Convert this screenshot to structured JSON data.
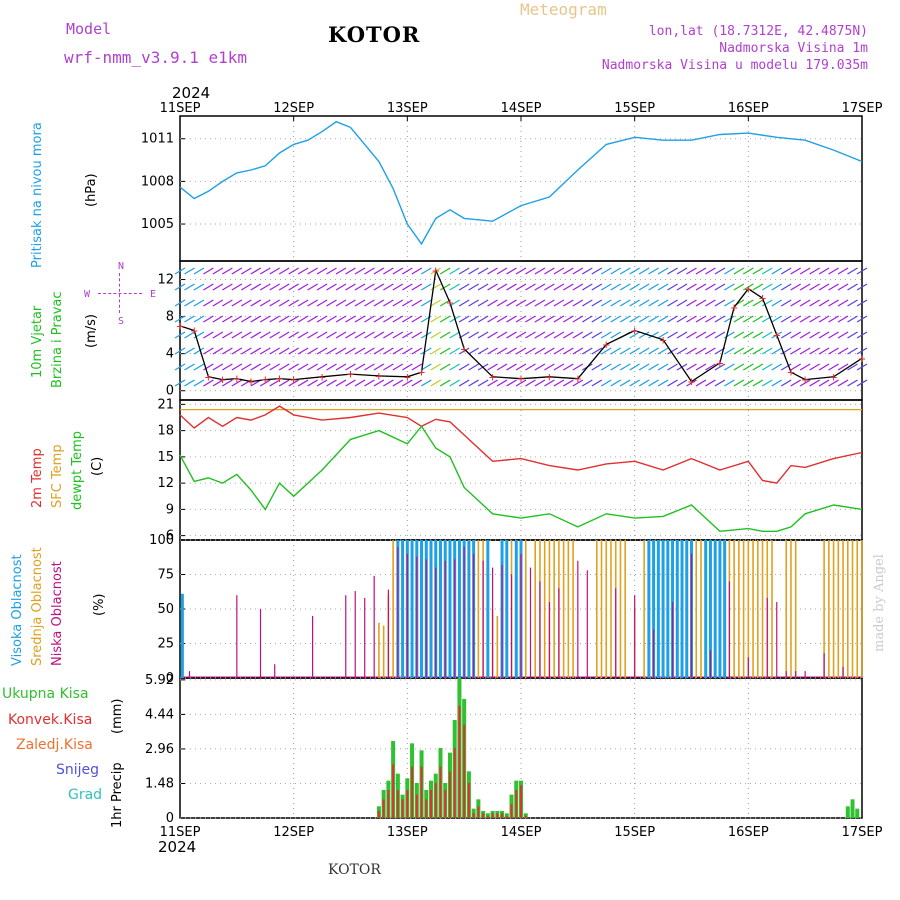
{
  "header": {
    "model_label": "Model",
    "model_name": "wrf-nmm_v3.9.1 e1km",
    "station": "KOTOR",
    "meteogram": "Meteogram",
    "lonlat": "lon,lat (18.7312E, 42.4875N)",
    "altitude": "Nadmorska Visina 1m",
    "model_altitude": "Nadmorska Visina u modelu 179.035m",
    "footer_station": "KOTOR",
    "watermark": "made by Angel"
  },
  "colors": {
    "pressure": "#1ea0e6",
    "temp2m": "#e03030",
    "sfc_temp": "#e0a020",
    "dewpt": "#20c020",
    "high_cloud": "#1ea0e6",
    "mid_cloud": "#e0a020",
    "low_cloud": "#c01080",
    "total_precip": "#30c030",
    "conv_precip": "#e03030",
    "violet": "#b040d0"
  },
  "time_axis": {
    "top_year": "2024",
    "bottom_year": "2024",
    "days": [
      "11SEP",
      "12SEP",
      "13SEP",
      "14SEP",
      "15SEP",
      "16SEP",
      "17SEP"
    ]
  },
  "chart_data": [
    {
      "type": "line",
      "id": "pressure",
      "ylabel_name": "Pritisak na nivou mora",
      "ylabel_unit": "(hPa)",
      "yticks": [
        "1011",
        "1008",
        "1005"
      ],
      "ylim": [
        1002.4,
        1012.6
      ],
      "x_hours": [
        0,
        3,
        6,
        9,
        12,
        15,
        18,
        21,
        24,
        27,
        30,
        33,
        36,
        39,
        42,
        45,
        48,
        51,
        54,
        57,
        60,
        66,
        72,
        78,
        84,
        90,
        96,
        102,
        108,
        114,
        120,
        126,
        132,
        138,
        144
      ],
      "values": [
        1007.6,
        1006.8,
        1007.3,
        1008.0,
        1008.6,
        1008.8,
        1009.1,
        1010.0,
        1010.6,
        1010.9,
        1011.5,
        1012.2,
        1011.8,
        1010.6,
        1009.4,
        1007.5,
        1005.0,
        1003.6,
        1005.4,
        1006.0,
        1005.4,
        1005.2,
        1006.3,
        1006.9,
        1008.8,
        1010.6,
        1011.1,
        1010.9,
        1010.9,
        1011.3,
        1011.4,
        1011.1,
        1010.9,
        1010.2,
        1009.4
      ]
    },
    {
      "type": "line",
      "id": "wind",
      "ylabel_name1": "10m Vjetar",
      "ylabel_name2": "Brzina i Pravac",
      "ylabel_unit": "(m/s)",
      "compass": {
        "n": "N",
        "s": "S",
        "w": "W",
        "e": "E"
      },
      "yticks": [
        "12",
        "8",
        "4",
        "0"
      ],
      "ylim": [
        -1,
        14
      ],
      "x_hours": [
        0,
        3,
        6,
        9,
        12,
        15,
        18,
        21,
        24,
        30,
        36,
        42,
        48,
        51,
        54,
        57,
        60,
        66,
        72,
        78,
        84,
        90,
        96,
        102,
        108,
        114,
        117,
        120,
        123,
        126,
        129,
        132,
        138,
        144
      ],
      "values": [
        7.0,
        6.5,
        1.5,
        1.2,
        1.3,
        1.0,
        1.2,
        1.3,
        1.2,
        1.5,
        1.8,
        1.6,
        1.5,
        2.0,
        13.0,
        9.5,
        4.5,
        1.5,
        1.3,
        1.5,
        1.3,
        5.0,
        6.5,
        5.5,
        1.0,
        3.0,
        9.0,
        11.0,
        10.0,
        6.0,
        2.0,
        1.2,
        1.5,
        3.5
      ]
    },
    {
      "type": "line",
      "id": "temperature",
      "ylabel_name1": "2m Temp",
      "ylabel_name2": "SFC Temp",
      "ylabel_name3": "dewpt Temp",
      "ylabel_unit": "(C)",
      "yticks": [
        "21",
        "18",
        "15",
        "12",
        "9",
        "6"
      ],
      "ylim": [
        5.5,
        21.5
      ],
      "sfc_temp": 20.4,
      "x_hours": [
        0,
        3,
        6,
        9,
        12,
        15,
        18,
        21,
        24,
        30,
        36,
        42,
        48,
        51,
        54,
        57,
        60,
        66,
        72,
        78,
        84,
        90,
        96,
        102,
        108,
        114,
        120,
        123,
        126,
        129,
        132,
        138,
        144
      ],
      "temp2m": [
        19.8,
        18.3,
        19.5,
        18.5,
        19.5,
        19.2,
        19.8,
        20.8,
        19.8,
        19.2,
        19.5,
        20.0,
        19.5,
        18.5,
        19.3,
        19.0,
        17.5,
        14.5,
        14.8,
        14.0,
        13.5,
        14.2,
        14.5,
        13.5,
        14.8,
        13.5,
        14.5,
        12.3,
        12.0,
        14.0,
        13.8,
        14.8,
        15.5
      ],
      "dewpt": [
        15.2,
        12.2,
        12.6,
        12.0,
        13.0,
        11.2,
        9.0,
        12.0,
        10.5,
        13.5,
        17.0,
        18.0,
        16.5,
        18.5,
        16.0,
        15.0,
        11.5,
        8.5,
        8.0,
        8.5,
        7.0,
        8.5,
        8.0,
        8.2,
        9.5,
        6.5,
        6.8,
        6.5,
        6.5,
        7.0,
        8.5,
        9.5,
        9.0
      ]
    },
    {
      "type": "bar",
      "id": "clouds",
      "ylabel_name1": "Visoka Oblacnost",
      "ylabel_name2": "Srednja Oblacnost",
      "ylabel_name3": "Niska Oblacnost",
      "ylabel_unit": "(%)",
      "yticks": [
        "100",
        "75",
        "50",
        "25",
        "0"
      ],
      "ylim": [
        0,
        100
      ],
      "high_hours": [
        0.5,
        46,
        47,
        48,
        49,
        50,
        51,
        52,
        53,
        54,
        55,
        56,
        57,
        58,
        59,
        60,
        61,
        62,
        65,
        68,
        69,
        71,
        72,
        99,
        100,
        101,
        102,
        103,
        104,
        105,
        106,
        107,
        108,
        111,
        112,
        113,
        114,
        115
      ],
      "high_values": [
        61,
        100,
        100,
        100,
        100,
        100,
        100,
        100,
        100,
        100,
        100,
        100,
        100,
        100,
        100,
        100,
        100,
        100,
        100,
        100,
        100,
        100,
        100,
        100,
        100,
        100,
        100,
        100,
        100,
        100,
        100,
        100,
        100,
        100,
        100,
        100,
        100,
        100
      ],
      "mid_hours": [
        42,
        43,
        44,
        45,
        46,
        47,
        48,
        49,
        50,
        51,
        52,
        53,
        54,
        55,
        56,
        57,
        58,
        59,
        60,
        61,
        62,
        63,
        64,
        65,
        66,
        67,
        68,
        69,
        70,
        72,
        73,
        75,
        76,
        77,
        78,
        79,
        80,
        81,
        82,
        83,
        88,
        89,
        90,
        91,
        92,
        93,
        94,
        96,
        98,
        100,
        101,
        102,
        103,
        104,
        105,
        106,
        107,
        108,
        109,
        110,
        111,
        113,
        114,
        115,
        116,
        117,
        118,
        119,
        120,
        121,
        122,
        123,
        124,
        125,
        128,
        129,
        130,
        136,
        137,
        138,
        139,
        140,
        141,
        142,
        143,
        144
      ],
      "mid_values": [
        40,
        38,
        60,
        100,
        100,
        100,
        100,
        100,
        100,
        100,
        100,
        100,
        100,
        100,
        100,
        100,
        100,
        100,
        100,
        100,
        100,
        100,
        100,
        100,
        50,
        45,
        100,
        55,
        100,
        100,
        100,
        100,
        100,
        100,
        100,
        100,
        100,
        100,
        100,
        100,
        100,
        100,
        100,
        100,
        100,
        100,
        100,
        50,
        100,
        100,
        100,
        100,
        100,
        100,
        100,
        100,
        100,
        100,
        100,
        100,
        100,
        100,
        100,
        100,
        100,
        100,
        100,
        100,
        100,
        100,
        100,
        100,
        100,
        100,
        100,
        100,
        100,
        100,
        100,
        100,
        100,
        100,
        100,
        100,
        100,
        100
      ],
      "low_hours": [
        2,
        12,
        17,
        20,
        28,
        35,
        37,
        39,
        41,
        44,
        46,
        48,
        50,
        52,
        54,
        56,
        58,
        60,
        62,
        64,
        66,
        68,
        70,
        72,
        74,
        76,
        78,
        80,
        84,
        86,
        92,
        96,
        100,
        104,
        108,
        112,
        116,
        120,
        124,
        126,
        128,
        130,
        132,
        136,
        140
      ],
      "low_values": [
        5,
        60,
        50,
        10,
        45,
        60,
        63,
        58,
        74,
        64,
        95,
        90,
        88,
        86,
        80,
        85,
        86,
        95,
        90,
        85,
        80,
        82,
        75,
        90,
        80,
        70,
        55,
        65,
        85,
        78,
        65,
        60,
        35,
        55,
        90,
        20,
        70,
        15,
        58,
        55,
        5,
        5,
        5,
        18,
        8
      ]
    },
    {
      "type": "bar",
      "id": "precip",
      "ylabel_name": "1hr Precip",
      "ylabel_unit": "(mm)",
      "legend_total": "Ukupna Kisa",
      "legend_conv": "Konvek.Kisa",
      "legend_ice": "Zaledj.Kisa",
      "legend_snow": "Snijeg",
      "legend_hail": "Grad",
      "yticks": [
        "5.92",
        "4.44",
        "2.96",
        "1.48",
        "0"
      ],
      "ylim": [
        0,
        6
      ],
      "hours": [
        42,
        43,
        44,
        45,
        46,
        47,
        48,
        49,
        50,
        51,
        52,
        53,
        54,
        55,
        56,
        57,
        58,
        59,
        60,
        61,
        62,
        63,
        64,
        65,
        66,
        67,
        68,
        69,
        70,
        71,
        72,
        73,
        141,
        142,
        143
      ],
      "total": [
        0.5,
        1.2,
        1.6,
        3.3,
        1.9,
        1.0,
        1.7,
        3.2,
        1.5,
        2.9,
        1.2,
        1.6,
        1.9,
        3.0,
        1.5,
        2.8,
        4.2,
        6.0,
        5.1,
        2.0,
        0.4,
        0.8,
        0.3,
        0.2,
        0.3,
        0.3,
        0.3,
        0.2,
        1.0,
        1.6,
        1.6,
        0.2,
        0.5,
        0.8,
        0.4
      ],
      "conv": [
        0.3,
        0.8,
        1.2,
        2.3,
        1.2,
        0.8,
        1.2,
        2.2,
        1.0,
        2.2,
        0.8,
        1.2,
        1.5,
        2.2,
        1.2,
        2.0,
        3.0,
        4.8,
        4.0,
        1.5,
        0.2,
        0.5,
        0.2,
        0.1,
        0.2,
        0.2,
        0.2,
        0.1,
        0.6,
        1.2,
        1.4,
        0.1,
        0,
        0,
        0
      ]
    }
  ]
}
